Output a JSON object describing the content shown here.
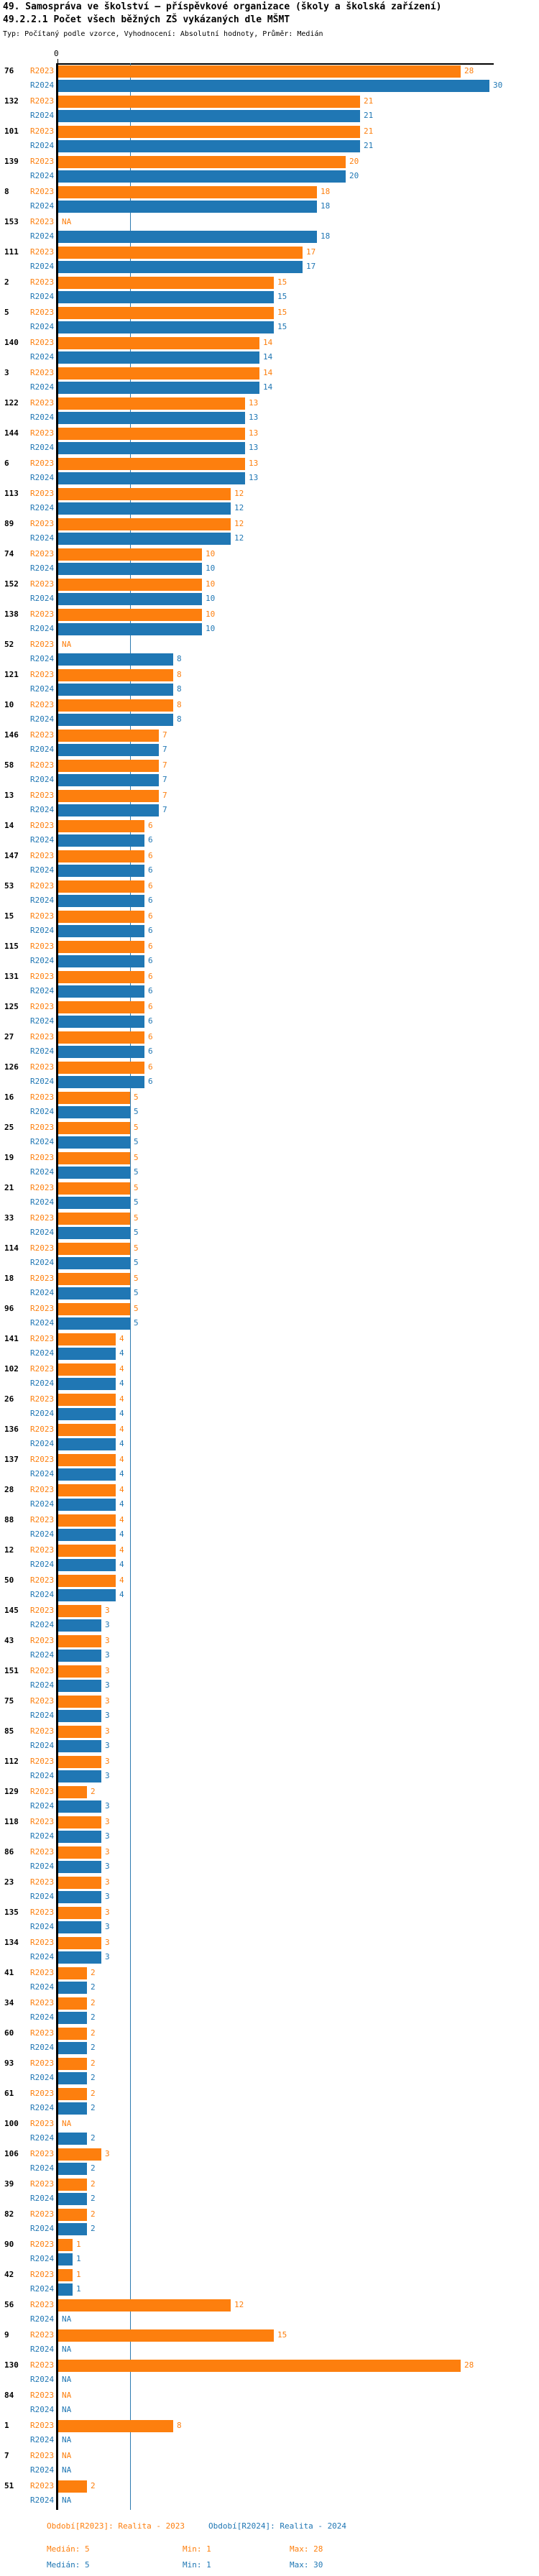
{
  "header": {
    "title": "49. Samospráva ve školství – příspěvkové organizace (školy a školská zařízení)",
    "subtitle": "49.2.2.1 Počet všech běžných ZŠ vykázaných dle MŠMT",
    "meta": "Typ: Počítaný podle vzorce, Vyhodnocení: Absolutní hodnoty, Průměr: Medián"
  },
  "axis": {
    "zero_label": "0"
  },
  "na_label": "NA",
  "colors": {
    "r2023": "#fd7f0e",
    "r2024": "#2077b4",
    "median_line": "#2e7bb0",
    "axis": "#000000"
  },
  "footer": {
    "legend_2023": "Období[R2023]: Realita - 2023",
    "legend_2024": "Období[R2024]: Realita - 2024",
    "stats_2023": {
      "median": "Medián: 5",
      "min": "Min: 1",
      "max": "Max: 28"
    },
    "stats_2024": {
      "median": "Medián: 5",
      "min": "Min: 1",
      "max": "Max: 30"
    }
  },
  "chart_data": {
    "type": "bar",
    "orientation": "horizontal",
    "title": "49.2.2.1 Počet všech běžných ZŠ vykázaných dle MŠMT",
    "series_names": [
      "R2023",
      "R2024"
    ],
    "xlim": [
      0,
      30.3
    ],
    "median_line": 5,
    "grid": false,
    "legend_position": "bottom",
    "rows": [
      {
        "label": "76",
        "r2023": 28,
        "r2024": 30
      },
      {
        "label": "132",
        "r2023": 21,
        "r2024": 21
      },
      {
        "label": "101",
        "r2023": 21,
        "r2024": 21
      },
      {
        "label": "139",
        "r2023": 20,
        "r2024": 20
      },
      {
        "label": "8",
        "r2023": 18,
        "r2024": 18
      },
      {
        "label": "153",
        "r2023": null,
        "r2024": 18
      },
      {
        "label": "111",
        "r2023": 17,
        "r2024": 17
      },
      {
        "label": "2",
        "r2023": 15,
        "r2024": 15
      },
      {
        "label": "5",
        "r2023": 15,
        "r2024": 15
      },
      {
        "label": "140",
        "r2023": 14,
        "r2024": 14
      },
      {
        "label": "3",
        "r2023": 14,
        "r2024": 14
      },
      {
        "label": "122",
        "r2023": 13,
        "r2024": 13
      },
      {
        "label": "144",
        "r2023": 13,
        "r2024": 13
      },
      {
        "label": "6",
        "r2023": 13,
        "r2024": 13
      },
      {
        "label": "113",
        "r2023": 12,
        "r2024": 12
      },
      {
        "label": "89",
        "r2023": 12,
        "r2024": 12
      },
      {
        "label": "74",
        "r2023": 10,
        "r2024": 10
      },
      {
        "label": "152",
        "r2023": 10,
        "r2024": 10
      },
      {
        "label": "138",
        "r2023": 10,
        "r2024": 10
      },
      {
        "label": "52",
        "r2023": null,
        "r2024": 8
      },
      {
        "label": "121",
        "r2023": 8,
        "r2024": 8
      },
      {
        "label": "10",
        "r2023": 8,
        "r2024": 8
      },
      {
        "label": "146",
        "r2023": 7,
        "r2024": 7
      },
      {
        "label": "58",
        "r2023": 7,
        "r2024": 7
      },
      {
        "label": "13",
        "r2023": 7,
        "r2024": 7
      },
      {
        "label": "14",
        "r2023": 6,
        "r2024": 6
      },
      {
        "label": "147",
        "r2023": 6,
        "r2024": 6
      },
      {
        "label": "53",
        "r2023": 6,
        "r2024": 6
      },
      {
        "label": "15",
        "r2023": 6,
        "r2024": 6
      },
      {
        "label": "115",
        "r2023": 6,
        "r2024": 6
      },
      {
        "label": "131",
        "r2023": 6,
        "r2024": 6
      },
      {
        "label": "125",
        "r2023": 6,
        "r2024": 6
      },
      {
        "label": "27",
        "r2023": 6,
        "r2024": 6
      },
      {
        "label": "126",
        "r2023": 6,
        "r2024": 6
      },
      {
        "label": "16",
        "r2023": 5,
        "r2024": 5
      },
      {
        "label": "25",
        "r2023": 5,
        "r2024": 5
      },
      {
        "label": "19",
        "r2023": 5,
        "r2024": 5
      },
      {
        "label": "21",
        "r2023": 5,
        "r2024": 5
      },
      {
        "label": "33",
        "r2023": 5,
        "r2024": 5
      },
      {
        "label": "114",
        "r2023": 5,
        "r2024": 5
      },
      {
        "label": "18",
        "r2023": 5,
        "r2024": 5
      },
      {
        "label": "96",
        "r2023": 5,
        "r2024": 5
      },
      {
        "label": "141",
        "r2023": 4,
        "r2024": 4
      },
      {
        "label": "102",
        "r2023": 4,
        "r2024": 4
      },
      {
        "label": "26",
        "r2023": 4,
        "r2024": 4
      },
      {
        "label": "136",
        "r2023": 4,
        "r2024": 4
      },
      {
        "label": "137",
        "r2023": 4,
        "r2024": 4
      },
      {
        "label": "28",
        "r2023": 4,
        "r2024": 4
      },
      {
        "label": "88",
        "r2023": 4,
        "r2024": 4
      },
      {
        "label": "12",
        "r2023": 4,
        "r2024": 4
      },
      {
        "label": "50",
        "r2023": 4,
        "r2024": 4
      },
      {
        "label": "145",
        "r2023": 3,
        "r2024": 3
      },
      {
        "label": "43",
        "r2023": 3,
        "r2024": 3
      },
      {
        "label": "151",
        "r2023": 3,
        "r2024": 3
      },
      {
        "label": "75",
        "r2023": 3,
        "r2024": 3
      },
      {
        "label": "85",
        "r2023": 3,
        "r2024": 3
      },
      {
        "label": "112",
        "r2023": 3,
        "r2024": 3
      },
      {
        "label": "129",
        "r2023": 2,
        "r2024": 3
      },
      {
        "label": "118",
        "r2023": 3,
        "r2024": 3
      },
      {
        "label": "86",
        "r2023": 3,
        "r2024": 3
      },
      {
        "label": "23",
        "r2023": 3,
        "r2024": 3
      },
      {
        "label": "135",
        "r2023": 3,
        "r2024": 3
      },
      {
        "label": "134",
        "r2023": 3,
        "r2024": 3
      },
      {
        "label": "41",
        "r2023": 2,
        "r2024": 2
      },
      {
        "label": "34",
        "r2023": 2,
        "r2024": 2
      },
      {
        "label": "60",
        "r2023": 2,
        "r2024": 2
      },
      {
        "label": "93",
        "r2023": 2,
        "r2024": 2
      },
      {
        "label": "61",
        "r2023": 2,
        "r2024": 2
      },
      {
        "label": "100",
        "r2023": null,
        "r2024": 2
      },
      {
        "label": "106",
        "r2023": 3,
        "r2024": 2
      },
      {
        "label": "39",
        "r2023": 2,
        "r2024": 2
      },
      {
        "label": "82",
        "r2023": 2,
        "r2024": 2
      },
      {
        "label": "90",
        "r2023": 1,
        "r2024": 1
      },
      {
        "label": "42",
        "r2023": 1,
        "r2024": 1
      },
      {
        "label": "56",
        "r2023": 12,
        "r2024": null
      },
      {
        "label": "9",
        "r2023": 15,
        "r2024": null
      },
      {
        "label": "130",
        "r2023": 28,
        "r2024": null
      },
      {
        "label": "84",
        "r2023": null,
        "r2024": null
      },
      {
        "label": "1",
        "r2023": 8,
        "r2024": null
      },
      {
        "label": "7",
        "r2023": null,
        "r2024": null
      },
      {
        "label": "51",
        "r2023": 2,
        "r2024": null
      }
    ]
  }
}
